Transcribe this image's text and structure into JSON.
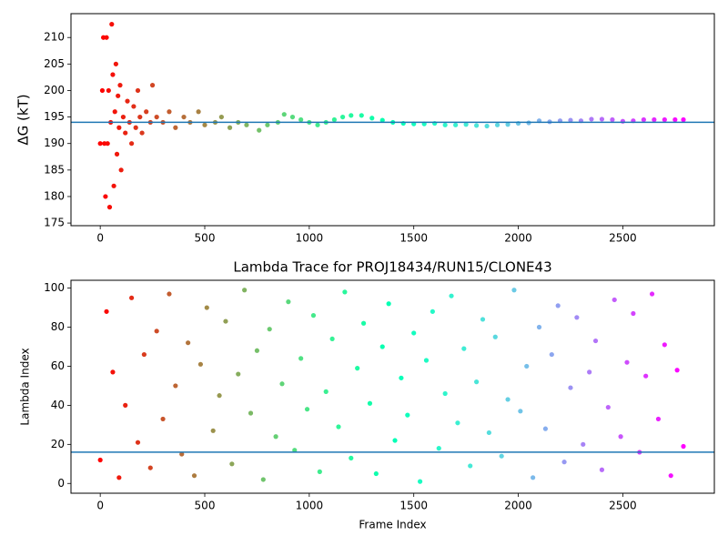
{
  "chart_data": [
    {
      "type": "scatter",
      "ylabel": "ΔG (kT)",
      "colormap": "rainbow_r",
      "hline": 194,
      "hline_color": "#1f77b4",
      "xlim": [
        -140,
        2938
      ],
      "ylim": [
        174.5,
        214.5
      ],
      "xticks": [
        0,
        500,
        1000,
        1500,
        2000,
        2500
      ],
      "yticks": [
        175,
        180,
        185,
        190,
        195,
        200,
        205,
        210
      ],
      "x": [
        0,
        10,
        15,
        20,
        25,
        30,
        35,
        40,
        45,
        50,
        55,
        60,
        65,
        70,
        75,
        80,
        85,
        90,
        95,
        100,
        110,
        120,
        130,
        140,
        150,
        160,
        170,
        180,
        190,
        200,
        220,
        240,
        250,
        270,
        300,
        330,
        360,
        400,
        430,
        470,
        500,
        550,
        580,
        620,
        660,
        700,
        760,
        800,
        850,
        880,
        920,
        960,
        1000,
        1040,
        1080,
        1120,
        1160,
        1200,
        1250,
        1300,
        1350,
        1400,
        1450,
        1500,
        1550,
        1600,
        1650,
        1700,
        1750,
        1800,
        1850,
        1900,
        1950,
        2000,
        2050,
        2100,
        2150,
        2200,
        2250,
        2300,
        2350,
        2400,
        2450,
        2500,
        2550,
        2600,
        2650,
        2700,
        2750,
        2790
      ],
      "y": [
        190,
        200,
        210,
        190,
        180,
        210,
        190,
        200,
        178,
        194,
        212.5,
        203,
        182,
        196,
        205,
        188,
        199,
        193,
        201,
        185,
        195,
        192,
        198,
        194,
        190,
        197,
        193,
        200,
        195,
        192,
        196,
        194,
        201,
        195,
        194,
        196,
        193,
        195,
        194,
        196,
        193.5,
        194,
        195,
        193,
        194,
        193.5,
        192.5,
        193.5,
        194,
        195.5,
        195,
        194.5,
        194,
        193.5,
        194,
        194.5,
        195,
        195.3,
        195.3,
        194.8,
        194.4,
        194,
        193.8,
        193.7,
        193.7,
        193.8,
        193.5,
        193.5,
        193.6,
        193.4,
        193.3,
        193.5,
        193.6,
        193.8,
        193.9,
        194.3,
        194.1,
        194.3,
        194.4,
        194.3,
        194.6,
        194.6,
        194.5,
        194.2,
        194.3,
        194.5,
        194.5,
        194.5,
        194.5,
        194.5
      ]
    },
    {
      "type": "scatter",
      "title": "Lambda Trace for PROJ18434/RUN15/CLONE43",
      "xlabel": "Frame Index",
      "ylabel": "Lambda Index",
      "colormap": "rainbow_r",
      "hline": 16,
      "hline_color": "#1f77b4",
      "xlim": [
        -140,
        2938
      ],
      "ylim": [
        -5,
        104
      ],
      "xticks": [
        0,
        500,
        1000,
        1500,
        2000,
        2500
      ],
      "yticks": [
        0,
        20,
        40,
        60,
        80,
        100
      ],
      "x": [
        0,
        30,
        60,
        90,
        120,
        150,
        180,
        210,
        240,
        270,
        300,
        330,
        360,
        390,
        420,
        450,
        480,
        510,
        540,
        570,
        600,
        630,
        660,
        690,
        720,
        750,
        780,
        810,
        840,
        870,
        900,
        930,
        960,
        990,
        1020,
        1050,
        1080,
        1110,
        1140,
        1170,
        1200,
        1230,
        1260,
        1290,
        1320,
        1350,
        1380,
        1410,
        1440,
        1470,
        1500,
        1530,
        1560,
        1590,
        1620,
        1650,
        1680,
        1710,
        1740,
        1770,
        1800,
        1830,
        1860,
        1890,
        1920,
        1950,
        1980,
        2010,
        2040,
        2070,
        2100,
        2130,
        2160,
        2190,
        2220,
        2250,
        2280,
        2310,
        2340,
        2370,
        2400,
        2430,
        2460,
        2490,
        2520,
        2550,
        2580,
        2610,
        2640,
        2670,
        2700,
        2730,
        2760,
        2790
      ],
      "y": [
        12,
        88,
        57,
        3,
        40,
        95,
        21,
        66,
        8,
        78,
        33,
        97,
        50,
        15,
        72,
        4,
        61,
        90,
        27,
        45,
        83,
        10,
        56,
        99,
        36,
        68,
        2,
        79,
        24,
        51,
        93,
        17,
        64,
        38,
        86,
        6,
        47,
        74,
        29,
        98,
        13,
        59,
        82,
        41,
        5,
        70,
        92,
        22,
        54,
        35,
        77,
        1,
        63,
        88,
        18,
        46,
        96,
        31,
        69,
        9,
        52,
        84,
        26,
        75,
        14,
        43,
        99,
        37,
        60,
        3,
        80,
        28,
        66,
        91,
        11,
        49,
        85,
        20,
        57,
        73,
        7,
        39,
        94,
        24,
        62,
        87,
        16,
        55,
        97,
        33,
        71,
        4,
        58,
        19
      ]
    }
  ]
}
